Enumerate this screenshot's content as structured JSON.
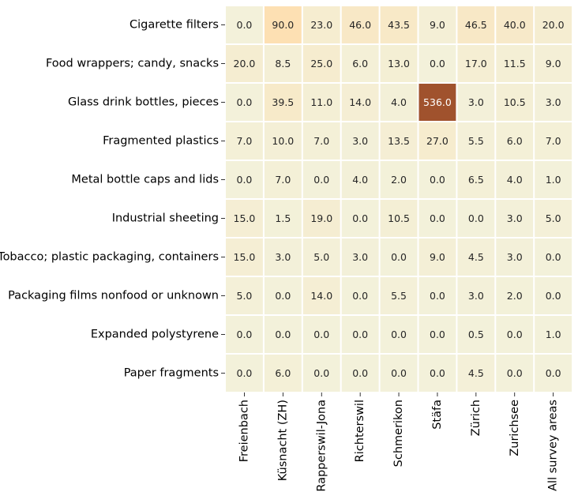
{
  "chart_data": {
    "type": "heatmap",
    "rows": [
      "Cigarette filters",
      "Food wrappers; candy, snacks",
      "Glass drink bottles, pieces",
      "Fragmented plastics",
      "Metal bottle caps and lids",
      "Industrial sheeting",
      "Tobacco; plastic packaging, containers",
      "Packaging films nonfood or unknown",
      "Expanded polystyrene",
      "Paper fragments"
    ],
    "columns": [
      "Freienbach",
      "Küsnacht (ZH)",
      "Rapperswil-Jona",
      "Richterswil",
      "Schmerikon",
      "Stäfa",
      "Zürich",
      "Zurichsee",
      "All survey areas"
    ],
    "values": [
      [
        0.0,
        90.0,
        23.0,
        46.0,
        43.5,
        9.0,
        46.5,
        40.0,
        20.0
      ],
      [
        20.0,
        8.5,
        25.0,
        6.0,
        13.0,
        0.0,
        17.0,
        11.5,
        9.0
      ],
      [
        0.0,
        39.5,
        11.0,
        14.0,
        4.0,
        536.0,
        3.0,
        10.5,
        3.0
      ],
      [
        7.0,
        10.0,
        7.0,
        3.0,
        13.5,
        27.0,
        5.5,
        6.0,
        7.0
      ],
      [
        0.0,
        7.0,
        0.0,
        4.0,
        2.0,
        0.0,
        6.5,
        4.0,
        1.0
      ],
      [
        15.0,
        1.5,
        19.0,
        0.0,
        10.5,
        0.0,
        0.0,
        3.0,
        5.0
      ],
      [
        15.0,
        3.0,
        5.0,
        3.0,
        0.0,
        9.0,
        4.5,
        3.0,
        0.0
      ],
      [
        5.0,
        0.0,
        14.0,
        0.0,
        5.5,
        0.0,
        3.0,
        2.0,
        0.0
      ],
      [
        0.0,
        0.0,
        0.0,
        0.0,
        0.0,
        0.0,
        0.5,
        0.0,
        1.0
      ],
      [
        0.0,
        6.0,
        0.0,
        0.0,
        0.0,
        0.0,
        4.5,
        0.0,
        0.0
      ]
    ],
    "value_format": "0.0",
    "colormap": {
      "low": "#f3f1da",
      "mid": "#fde0b3",
      "high": "#a0522d",
      "vmin": 0,
      "vmax": 100
    },
    "text_colors": {
      "light_cell": "#262626",
      "dark_cell": "#ffffff"
    },
    "tick_label_color": "#000000",
    "gridline_color": "#ffffff"
  }
}
